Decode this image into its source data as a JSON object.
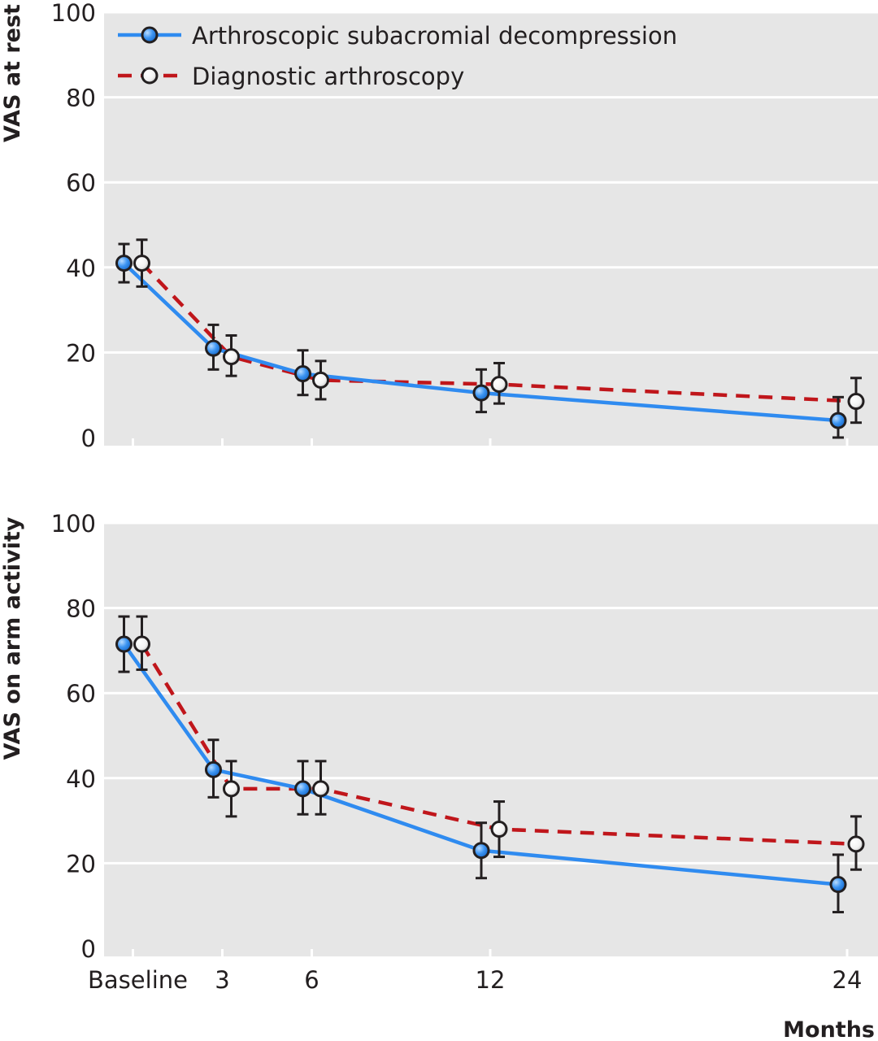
{
  "chart_data": [
    {
      "type": "line",
      "ylabel": "VAS at rest",
      "xlabel": "",
      "ylim": [
        0,
        100
      ],
      "yticks": [
        0,
        20,
        40,
        60,
        80,
        100
      ],
      "grid": true,
      "legend_position": "top-left",
      "x": [
        0,
        3,
        6,
        12,
        24
      ],
      "series": [
        {
          "name": "Arthroscopic subacromial decompression",
          "color": "#2f8bf0",
          "marker": "filled-blue",
          "line_style": "solid",
          "values": [
            41,
            21,
            15,
            10.5,
            4
          ],
          "err_low": [
            36.5,
            16,
            10,
            6,
            0
          ],
          "err_high": [
            45.5,
            26.5,
            20.5,
            16,
            9.5
          ]
        },
        {
          "name": "Diagnostic arthroscopy",
          "color": "#c0161b",
          "marker": "open-white",
          "line_style": "dashed",
          "values": [
            41,
            19,
            13.5,
            12.5,
            8.5
          ],
          "err_low": [
            35.5,
            14.5,
            9,
            8,
            3.5
          ],
          "err_high": [
            46.5,
            24,
            18,
            17.5,
            14
          ]
        }
      ]
    },
    {
      "type": "line",
      "ylabel": "VAS on arm activity",
      "xlabel": "Months",
      "ylim": [
        0,
        100
      ],
      "yticks": [
        0,
        20,
        40,
        60,
        80,
        100
      ],
      "grid": true,
      "x": [
        0,
        3,
        6,
        12,
        24
      ],
      "x_tick_labels": [
        "Baseline",
        "3",
        "6",
        "12",
        "24"
      ],
      "series": [
        {
          "name": "Arthroscopic subacromial decompression",
          "color": "#2f8bf0",
          "marker": "filled-blue",
          "line_style": "solid",
          "values": [
            71.5,
            42,
            37.5,
            23,
            15
          ],
          "err_low": [
            65,
            35.5,
            31.5,
            16.5,
            8.5
          ],
          "err_high": [
            78,
            49,
            44,
            29.5,
            22
          ]
        },
        {
          "name": "Diagnostic arthroscopy",
          "color": "#c0161b",
          "marker": "open-white",
          "line_style": "dashed",
          "values": [
            71.5,
            37.5,
            37.5,
            28,
            24.5
          ],
          "err_low": [
            65.5,
            31,
            31.5,
            21.5,
            18.5
          ],
          "err_high": [
            78,
            44,
            44,
            34.5,
            31
          ]
        }
      ]
    }
  ]
}
